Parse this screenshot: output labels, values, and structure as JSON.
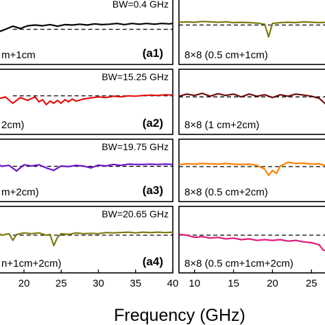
{
  "chart_data": {
    "type": "line",
    "xlabel": "Frequency (GHz)",
    "panels": [
      {
        "id": "a1",
        "tag": "(a1)",
        "label": "m+1cm",
        "bw": "BW=0.4 GHz",
        "color": "#000000",
        "ref": -0.35,
        "x": [
          16.5,
          17.5,
          18.5,
          19.5,
          20.5,
          21.5,
          22.5,
          23.5,
          24.5,
          25.5,
          26.5,
          27.5,
          28.5,
          29.5,
          30.5,
          31.5,
          32.5,
          33.5,
          34.5,
          35.5,
          36.5,
          37.5,
          38.5,
          39.5,
          40
        ],
        "y": [
          -0.7,
          -0.35,
          0.05,
          -0.25,
          0.1,
          0.2,
          0.1,
          0.25,
          0.05,
          0.25,
          0.2,
          0.3,
          0.2,
          0.35,
          0.25,
          0.3,
          0.4,
          0.25,
          0.4,
          0.3,
          0.4,
          0.3,
          0.4,
          0.35,
          0.4
        ]
      },
      {
        "id": "a2",
        "tag": "(a2)",
        "label": "2cm)",
        "bw": "BW=15.25 GHz",
        "color": "#e01010",
        "ref": 0.35,
        "x": [
          16.5,
          17.5,
          18.5,
          19.5,
          20.5,
          21.5,
          22,
          22.5,
          23,
          23.5,
          24,
          24.5,
          25,
          25.5,
          26,
          26.5,
          27,
          28,
          29,
          30,
          31,
          32,
          33,
          34,
          35,
          36,
          37,
          38,
          39,
          40
        ],
        "y": [
          -0.1,
          0.2,
          -0.7,
          0.1,
          -0.3,
          0.2,
          -0.5,
          -0.2,
          -0.9,
          -0.4,
          -0.7,
          -0.3,
          -0.7,
          -0.2,
          -0.5,
          -0.1,
          -0.4,
          -0.1,
          0.05,
          0.2,
          0.1,
          0.3,
          0.2,
          0.35,
          0.3,
          0.4,
          0.45,
          0.4,
          0.5,
          0.45
        ]
      },
      {
        "id": "a3",
        "tag": "(a3)",
        "label": "m+2cm)",
        "bw": "BW=19.75 GHz",
        "color": "#6a12cc",
        "ref": 0.15,
        "x": [
          16.5,
          17,
          18,
          19,
          20,
          21,
          22,
          23,
          24,
          25,
          26,
          27,
          28,
          29,
          30,
          31,
          32,
          33,
          34,
          35,
          36,
          37,
          38,
          39,
          40
        ],
        "y": [
          0.5,
          0.15,
          0.3,
          -0.6,
          0.4,
          0.2,
          0.4,
          -0.1,
          -0.5,
          0.2,
          0.1,
          0.3,
          0.2,
          -0.1,
          0.35,
          0.2,
          0.45,
          0.3,
          0.5,
          0.45,
          0.45,
          0.5,
          0.45,
          0.5,
          0.45
        ]
      },
      {
        "id": "a4",
        "tag": "(a4)",
        "label": "n+1cm+2cm)",
        "bw": "BW=20.65 GHz",
        "color": "#7a7a10",
        "ref": 0.1,
        "x": [
          16.5,
          17,
          18,
          18.5,
          19,
          20,
          21,
          22,
          23,
          23.5,
          24,
          24.5,
          25,
          26,
          27,
          28,
          29,
          30,
          31,
          32,
          33,
          34,
          35,
          36,
          37,
          38,
          39,
          40
        ],
        "y": [
          0.4,
          0.1,
          0.3,
          -0.6,
          0.2,
          0.4,
          0.3,
          0.4,
          0.1,
          0.2,
          -1.3,
          -0.2,
          0.3,
          0.2,
          0.4,
          0.3,
          0.35,
          0.3,
          0.45,
          0.4,
          0.45,
          0.5,
          0.4,
          0.5,
          0.45,
          0.5,
          0.45,
          0.5
        ]
      },
      {
        "id": "b1",
        "tag": "",
        "label": "8×8 (0.5 cm+1cm)",
        "bw": "",
        "color": "#7a7a10",
        "ref": 0.2,
        "x": [
          8,
          9,
          10,
          11,
          12,
          13,
          14,
          15,
          16,
          17,
          18,
          19,
          19.5,
          20,
          21,
          22,
          23,
          24,
          25,
          26,
          27
        ],
        "y": [
          0.55,
          0.6,
          0.55,
          0.65,
          0.6,
          0.55,
          0.6,
          0.5,
          0.55,
          0.5,
          0.45,
          0.3,
          -1.3,
          0.4,
          0.5,
          0.55,
          0.5,
          0.6,
          0.55,
          0.5,
          0.55
        ]
      },
      {
        "id": "b2",
        "tag": "",
        "label": "8×8 (1 cm+2cm)",
        "bw": "",
        "color": "#6e0a0a",
        "ref": 0.2,
        "x": [
          8,
          9,
          10,
          11,
          12,
          13,
          14,
          15,
          16,
          17,
          18,
          19,
          20,
          21,
          22,
          23,
          24,
          25,
          26,
          27
        ],
        "y": [
          0.3,
          0.6,
          0.4,
          0.7,
          0.3,
          0.65,
          0.4,
          0.6,
          0.2,
          0.6,
          0.3,
          0.5,
          0.1,
          0.5,
          0.3,
          0.6,
          0.45,
          0.3,
          0.0,
          -1.0
        ]
      },
      {
        "id": "b3",
        "tag": "",
        "label": "8×8 (0.5 cm+2cm)",
        "bw": "",
        "color": "#ff7f00",
        "ref": 0.1,
        "x": [
          8,
          9,
          10,
          11,
          12,
          13,
          14,
          15,
          16,
          17,
          18,
          19,
          19.5,
          20,
          20.5,
          21,
          22,
          23,
          24,
          25,
          26,
          27
        ],
        "y": [
          0.4,
          0.55,
          0.5,
          0.6,
          0.55,
          0.5,
          0.6,
          0.5,
          0.45,
          0.5,
          0.3,
          -0.3,
          -1.3,
          -0.5,
          -1.0,
          0.2,
          0.8,
          0.6,
          0.65,
          0.5,
          0.55,
          0.2
        ]
      },
      {
        "id": "b4",
        "tag": "",
        "label": "8×8 (0.5 cm+1cm+2cm)",
        "bw": "",
        "color": "#e0187a",
        "ref": 0.1,
        "x": [
          8,
          9,
          10,
          11,
          12,
          13,
          14,
          15,
          16,
          17,
          18,
          19,
          20,
          21,
          22,
          23,
          24,
          25,
          26,
          26.5,
          27
        ],
        "y": [
          0.2,
          0.1,
          -0.2,
          -0.1,
          -0.3,
          -0.2,
          -0.4,
          -0.3,
          -0.5,
          -0.4,
          -0.6,
          -0.5,
          -0.6,
          -0.5,
          -0.7,
          -0.6,
          -0.8,
          -0.9,
          -1.2,
          -1.9,
          -2.0
        ]
      }
    ],
    "left_xticks": [
      "20",
      "25",
      "30",
      "35",
      "40"
    ],
    "left_xtick_values": [
      20,
      25,
      30,
      35,
      40
    ],
    "right_xticks": [
      "10",
      "15",
      "20",
      "25"
    ],
    "right_xtick_values": [
      10,
      15,
      20,
      25
    ]
  }
}
